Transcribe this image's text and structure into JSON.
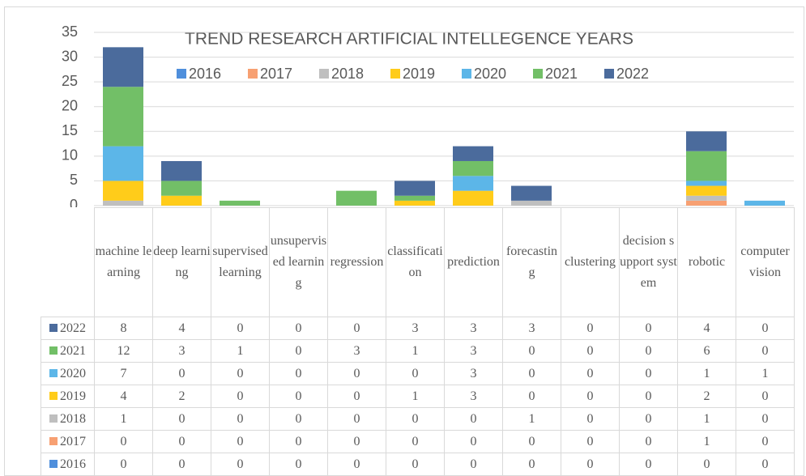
{
  "chart_data": {
    "type": "stacked_bar",
    "title": "TREND RESEARCH ARTIFICIAL INTELLEGENCE YEARS",
    "categories": [
      "machine learning",
      "deep learning",
      "supervised learning",
      "unsupervised learning",
      "regression",
      "classification",
      "prediction",
      "forecasting",
      "clustering",
      "decision support system",
      "robotic",
      "computer vision"
    ],
    "series": [
      {
        "name": "2016",
        "color": "#4f8fdc",
        "values": [
          0,
          0,
          0,
          0,
          0,
          0,
          0,
          0,
          0,
          0,
          0,
          0
        ]
      },
      {
        "name": "2017",
        "color": "#f7a072",
        "values": [
          0,
          0,
          0,
          0,
          0,
          0,
          0,
          0,
          0,
          0,
          1,
          0
        ]
      },
      {
        "name": "2018",
        "color": "#bfbfbf",
        "values": [
          1,
          0,
          0,
          0,
          0,
          0,
          0,
          1,
          0,
          0,
          1,
          0
        ]
      },
      {
        "name": "2019",
        "color": "#ffcc1a",
        "values": [
          4,
          2,
          0,
          0,
          0,
          1,
          3,
          0,
          0,
          0,
          2,
          0
        ]
      },
      {
        "name": "2020",
        "color": "#5cb6e8",
        "values": [
          7,
          0,
          0,
          0,
          0,
          0,
          3,
          0,
          0,
          0,
          1,
          1
        ]
      },
      {
        "name": "2021",
        "color": "#72bf67",
        "values": [
          12,
          3,
          1,
          0,
          3,
          1,
          3,
          0,
          0,
          0,
          6,
          0
        ]
      },
      {
        "name": "2022",
        "color": "#4b6b9c",
        "values": [
          8,
          4,
          0,
          0,
          0,
          3,
          3,
          3,
          0,
          0,
          4,
          0
        ]
      }
    ],
    "ylim": [
      0,
      35
    ],
    "yticks": [
      0,
      5,
      10,
      15,
      20,
      25,
      30,
      35
    ],
    "grid": true
  }
}
